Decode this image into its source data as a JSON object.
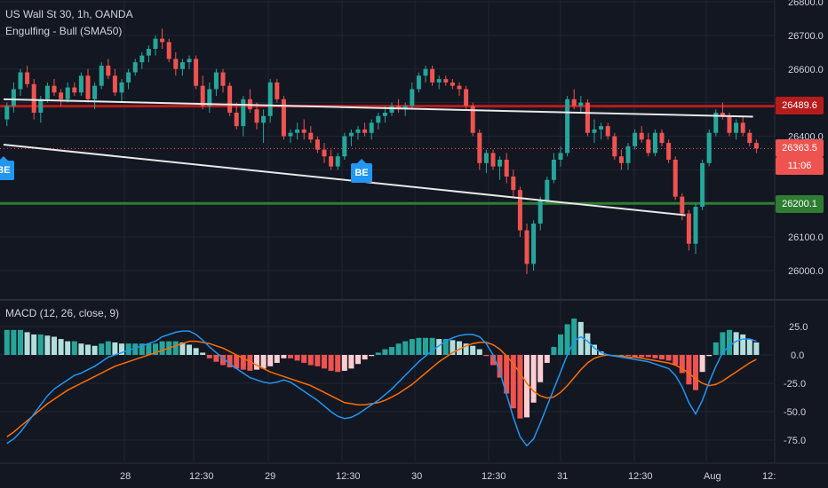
{
  "header": {
    "symbol": "US Wall St 30, 1h, OANDA",
    "indicator": "Engulfing - Bull (SMA50)",
    "macd_label": "MACD (12, 26, close, 9)"
  },
  "markers": {
    "be_label": "BE"
  },
  "price_tags": {
    "resistance": "26489.6",
    "current": "26363.5",
    "countdown": "11:06",
    "support": "26200.1",
    "partial_hidden": "26"
  },
  "colors": {
    "up": "#26a69a",
    "down": "#ef5350",
    "resistance": "#b71c1c",
    "support": "#2e7d32",
    "trendline": "#e8e8e8",
    "macd": "#2196f3",
    "signal": "#ff6d00",
    "hist_up_strong": "#26a69a",
    "hist_up_weak": "#b2dfdb",
    "hist_down_strong": "#ef5350",
    "hist_down_weak": "#ffcdd2",
    "badge": "#2196f3"
  },
  "chart_data": [
    {
      "type": "candlestick",
      "x": [
        "28",
        "12:30",
        "29",
        "12:30",
        "30",
        "12:30",
        "31",
        "12:30",
        "Aug",
        "12:"
      ],
      "ylim": [
        25950,
        26800
      ],
      "y_ticks": [
        "26800.0",
        "26700.0",
        "26600.0",
        "26400.0",
        "26100.0",
        "26000.0"
      ],
      "hlines": [
        26489.6,
        26200.1
      ],
      "last_price": 26363.5,
      "trendlines": [
        {
          "from_bar": 0,
          "from": 26510,
          "to_bar": 111,
          "to": 26458
        },
        {
          "from_bar": 0,
          "from": 26375,
          "to_bar": 101,
          "to": 26165
        }
      ],
      "be_markers": [
        0,
        53
      ],
      "candles": [
        [
          26450,
          26500,
          26430,
          26490
        ],
        [
          26490,
          26560,
          26470,
          26540
        ],
        [
          26540,
          26600,
          26520,
          26590
        ],
        [
          26590,
          26610,
          26545,
          26555
        ],
        [
          26555,
          26570,
          26450,
          26470
        ],
        [
          26470,
          26520,
          26440,
          26510
        ],
        [
          26510,
          26560,
          26500,
          26550
        ],
        [
          26550,
          26570,
          26520,
          26530
        ],
        [
          26530,
          26540,
          26490,
          26510
        ],
        [
          26510,
          26560,
          26500,
          26545
        ],
        [
          26545,
          26560,
          26520,
          26530
        ],
        [
          26530,
          26590,
          26520,
          26580
        ],
        [
          26580,
          26600,
          26500,
          26510
        ],
        [
          26510,
          26560,
          26480,
          26550
        ],
        [
          26550,
          26620,
          26540,
          26610
        ],
        [
          26610,
          26630,
          26570,
          26580
        ],
        [
          26580,
          26600,
          26520,
          26530
        ],
        [
          26530,
          26570,
          26500,
          26560
        ],
        [
          26560,
          26600,
          26540,
          26590
        ],
        [
          26590,
          26630,
          26580,
          26620
        ],
        [
          26620,
          26650,
          26600,
          26640
        ],
        [
          26640,
          26670,
          26620,
          26660
        ],
        [
          26660,
          26700,
          26640,
          26690
        ],
        [
          26690,
          26720,
          26660,
          26680
        ],
        [
          26680,
          26690,
          26620,
          26630
        ],
        [
          26630,
          26650,
          26580,
          26600
        ],
        [
          26600,
          26630,
          26580,
          26620
        ],
        [
          26620,
          26640,
          26600,
          26630
        ],
        [
          26630,
          26640,
          26540,
          26550
        ],
        [
          26550,
          26580,
          26480,
          26490
        ],
        [
          26490,
          26560,
          26470,
          26540
        ],
        [
          26540,
          26600,
          26520,
          26590
        ],
        [
          26590,
          26600,
          26530,
          26550
        ],
        [
          26550,
          26560,
          26460,
          26470
        ],
        [
          26470,
          26500,
          26420,
          26430
        ],
        [
          26430,
          26520,
          26400,
          26510
        ],
        [
          26510,
          26540,
          26470,
          26480
        ],
        [
          26480,
          26500,
          26420,
          26440
        ],
        [
          26440,
          26480,
          26380,
          26460
        ],
        [
          26460,
          26570,
          26440,
          26560
        ],
        [
          26560,
          26570,
          26500,
          26510
        ],
        [
          26510,
          26520,
          26390,
          26400
        ],
        [
          26400,
          26420,
          26380,
          26410
        ],
        [
          26410,
          26440,
          26390,
          26420
        ],
        [
          26420,
          26450,
          26390,
          26410
        ],
        [
          26410,
          26430,
          26380,
          26390
        ],
        [
          26390,
          26400,
          26350,
          26360
        ],
        [
          26360,
          26380,
          26320,
          26340
        ],
        [
          26340,
          26360,
          26300,
          26310
        ],
        [
          26310,
          26350,
          26300,
          26340
        ],
        [
          26340,
          26410,
          26330,
          26400
        ],
        [
          26400,
          26420,
          26370,
          26410
        ],
        [
          26410,
          26430,
          26390,
          26420
        ],
        [
          26420,
          26440,
          26400,
          26410
        ],
        [
          26410,
          26450,
          26390,
          26440
        ],
        [
          26440,
          26470,
          26420,
          26460
        ],
        [
          26460,
          26490,
          26440,
          26470
        ],
        [
          26470,
          26500,
          26460,
          26490
        ],
        [
          26490,
          26510,
          26470,
          26480
        ],
        [
          26480,
          26500,
          26460,
          26490
        ],
        [
          26490,
          26560,
          26480,
          26540
        ],
        [
          26540,
          26590,
          26530,
          26580
        ],
        [
          26580,
          26610,
          26560,
          26600
        ],
        [
          26600,
          26610,
          26550,
          26560
        ],
        [
          26560,
          26580,
          26540,
          26570
        ],
        [
          26570,
          26580,
          26550,
          26560
        ],
        [
          26560,
          26570,
          26540,
          26550
        ],
        [
          26550,
          26560,
          26520,
          26540
        ],
        [
          26540,
          26550,
          26480,
          26490
        ],
        [
          26490,
          26500,
          26400,
          26410
        ],
        [
          26410,
          26420,
          26300,
          26320
        ],
        [
          26320,
          26360,
          26290,
          26350
        ],
        [
          26350,
          26360,
          26300,
          26310
        ],
        [
          26310,
          26340,
          26270,
          26330
        ],
        [
          26330,
          26350,
          26260,
          26280
        ],
        [
          26280,
          26300,
          26220,
          26240
        ],
        [
          26240,
          26250,
          26100,
          26120
        ],
        [
          26120,
          26140,
          25990,
          26020
        ],
        [
          26020,
          26150,
          26000,
          26140
        ],
        [
          26140,
          26220,
          26120,
          26210
        ],
        [
          26210,
          26280,
          26200,
          26270
        ],
        [
          26270,
          26350,
          26260,
          26330
        ],
        [
          26330,
          26370,
          26310,
          26350
        ],
        [
          26350,
          26520,
          26340,
          26510
        ],
        [
          26510,
          26540,
          26480,
          26490
        ],
        [
          26490,
          26520,
          26470,
          26500
        ],
        [
          26500,
          26510,
          26400,
          26410
        ],
        [
          26410,
          26450,
          26380,
          26420
        ],
        [
          26420,
          26440,
          26390,
          26430
        ],
        [
          26430,
          26440,
          26390,
          26400
        ],
        [
          26400,
          26410,
          26330,
          26340
        ],
        [
          26340,
          26360,
          26300,
          26320
        ],
        [
          26320,
          26380,
          26300,
          26370
        ],
        [
          26370,
          26420,
          26360,
          26410
        ],
        [
          26410,
          26430,
          26380,
          26390
        ],
        [
          26390,
          26410,
          26340,
          26350
        ],
        [
          26350,
          26420,
          26340,
          26410
        ],
        [
          26410,
          26420,
          26370,
          26380
        ],
        [
          26380,
          26390,
          26320,
          26330
        ],
        [
          26330,
          26340,
          26210,
          26220
        ],
        [
          26220,
          26230,
          26150,
          26170
        ],
        [
          26170,
          26180,
          26060,
          26080
        ],
        [
          26080,
          26200,
          26050,
          26190
        ],
        [
          26190,
          26330,
          26180,
          26320
        ],
        [
          26320,
          26420,
          26310,
          26410
        ],
        [
          26410,
          26480,
          26400,
          26470
        ],
        [
          26470,
          26500,
          26450,
          26460
        ],
        [
          26460,
          26470,
          26400,
          26410
        ],
        [
          26410,
          26450,
          26390,
          26440
        ],
        [
          26440,
          26460,
          26400,
          26410
        ],
        [
          26410,
          26420,
          26370,
          26380
        ],
        [
          26380,
          26390,
          26350,
          26363.5
        ]
      ]
    },
    {
      "type": "macd",
      "title": "MACD (12, 26, close, 9)",
      "ylim": [
        -85,
        38
      ],
      "y_ticks": [
        "25.0",
        "0.0",
        "-25.0",
        "-50.0",
        "-75.0"
      ],
      "macd": [
        -78,
        -74,
        -68,
        -60,
        -52,
        -44,
        -36,
        -30,
        -26,
        -22,
        -18,
        -16,
        -13,
        -10,
        -6,
        -2,
        0,
        2,
        4,
        6,
        8,
        10,
        12,
        16,
        18,
        20,
        21,
        21,
        18,
        13,
        7,
        2,
        -3,
        -8,
        -12,
        -16,
        -20,
        -22,
        -24,
        -25,
        -24,
        -22,
        -24,
        -28,
        -32,
        -36,
        -40,
        -45,
        -50,
        -54,
        -56,
        -55,
        -52,
        -48,
        -44,
        -40,
        -35,
        -30,
        -24,
        -18,
        -12,
        -6,
        -1,
        4,
        8,
        12,
        15,
        17,
        18,
        18,
        16,
        10,
        0,
        -15,
        -35,
        -55,
        -72,
        -80,
        -74,
        -60,
        -45,
        -30,
        -15,
        0,
        12,
        16,
        12,
        6,
        2,
        0,
        -1,
        -2,
        -3,
        -4,
        -5,
        -6,
        -8,
        -10,
        -12,
        -18,
        -28,
        -42,
        -52,
        -40,
        -24,
        -10,
        2,
        8,
        12,
        14,
        14,
        12
      ],
      "signal": [
        -72,
        -68,
        -63,
        -58,
        -53,
        -48,
        -43,
        -39,
        -35,
        -31,
        -28,
        -25,
        -22,
        -19,
        -16,
        -13,
        -10,
        -8,
        -6,
        -4,
        -2,
        0,
        2,
        4,
        6,
        8,
        10,
        12,
        12,
        11,
        10,
        8,
        6,
        3,
        0,
        -3,
        -6,
        -9,
        -12,
        -15,
        -17,
        -19,
        -21,
        -23,
        -25,
        -27,
        -30,
        -33,
        -36,
        -39,
        -42,
        -43,
        -44,
        -44,
        -43,
        -42,
        -40,
        -37,
        -34,
        -30,
        -26,
        -21,
        -16,
        -11,
        -6,
        -2,
        2,
        5,
        8,
        10,
        11,
        11,
        9,
        5,
        -1,
        -8,
        -16,
        -25,
        -32,
        -36,
        -38,
        -37,
        -33,
        -27,
        -20,
        -13,
        -7,
        -3,
        -1,
        0,
        -1,
        -1,
        -2,
        -2,
        -3,
        -4,
        -5,
        -6,
        -7,
        -9,
        -12,
        -16,
        -21,
        -25,
        -27,
        -26,
        -23,
        -19,
        -15,
        -11,
        -7,
        -4
      ],
      "histogram": [
        22,
        22,
        22,
        20,
        18,
        18,
        17,
        16,
        14,
        12,
        12,
        10,
        9,
        8,
        10,
        12,
        11,
        10,
        10,
        10,
        10,
        10,
        10,
        12,
        12,
        12,
        11,
        9,
        6,
        2,
        -3,
        -6,
        -9,
        -11,
        -12,
        -13,
        -14,
        -13,
        -12,
        -10,
        -7,
        -3,
        -3,
        -5,
        -7,
        -9,
        -10,
        -12,
        -14,
        -15,
        -14,
        -12,
        -8,
        -4,
        -1,
        2,
        5,
        7,
        10,
        12,
        14,
        15,
        15,
        15,
        14,
        14,
        13,
        12,
        10,
        8,
        5,
        -1,
        -9,
        -20,
        -34,
        -47,
        -56,
        -55,
        -42,
        -24,
        -7,
        7,
        18,
        27,
        32,
        29,
        19,
        9,
        3,
        0,
        0,
        0,
        -1,
        -2,
        -2,
        -2,
        -3,
        -4,
        -5,
        -9,
        -16,
        -26,
        -31,
        -15,
        -1,
        11,
        20,
        22,
        20,
        18,
        14,
        11
      ]
    }
  ]
}
